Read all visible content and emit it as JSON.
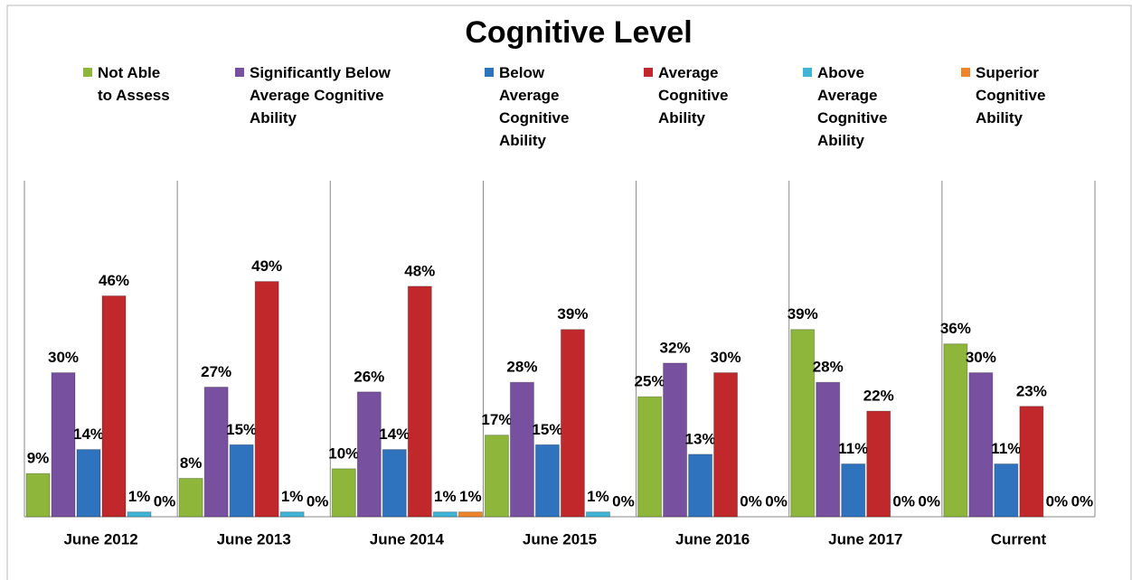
{
  "chart_data": {
    "type": "bar",
    "title": "Cognitive Level",
    "categories": [
      "June 2012",
      "June 2013",
      "June 2014",
      "June 2015",
      "June 2016",
      "June 2017",
      "Current"
    ],
    "ylim": [
      0,
      70
    ],
    "series": [
      {
        "name": "Not Able to Assess",
        "color": "#8db63a",
        "values": [
          9,
          8,
          10,
          17,
          25,
          39,
          36
        ],
        "value_labels": [
          "9%",
          "8%",
          "10%",
          "17%",
          "25%",
          "39%",
          "36%"
        ]
      },
      {
        "name": "Significantly Below Average Cognitive Ability",
        "color": "#7750a0",
        "values": [
          30,
          27,
          26,
          28,
          32,
          28,
          30
        ],
        "value_labels": [
          "30%",
          "27%",
          "26%",
          "28%",
          "32%",
          "28%",
          "30%"
        ]
      },
      {
        "name": "Below Average Cognitive Ability",
        "color": "#2f72bd",
        "values": [
          14,
          15,
          14,
          15,
          13,
          11,
          11
        ],
        "value_labels": [
          "14%",
          "15%",
          "14%",
          "15%",
          "13%",
          "11%",
          "11%"
        ]
      },
      {
        "name": "Average Cognitive Ability",
        "color": "#c0282c",
        "values": [
          46,
          49,
          48,
          39,
          30,
          22,
          23
        ],
        "value_labels": [
          "46%",
          "49%",
          "48%",
          "39%",
          "30%",
          "22%",
          "23%"
        ]
      },
      {
        "name": "Above Average Cognitive Ability",
        "color": "#3fb4d6",
        "values": [
          1,
          1,
          1,
          1,
          0,
          0,
          0
        ],
        "value_labels": [
          "1%",
          "1%",
          "1%",
          "1%",
          "0%",
          "0%",
          "0%"
        ]
      },
      {
        "name": "Superior Cognitive Ability",
        "color": "#ef8428",
        "values": [
          0,
          0,
          1,
          0,
          0,
          0,
          0
        ],
        "value_labels": [
          "0%",
          "0%",
          "1%",
          "0%",
          "0%",
          "0%",
          "0%"
        ]
      }
    ]
  }
}
